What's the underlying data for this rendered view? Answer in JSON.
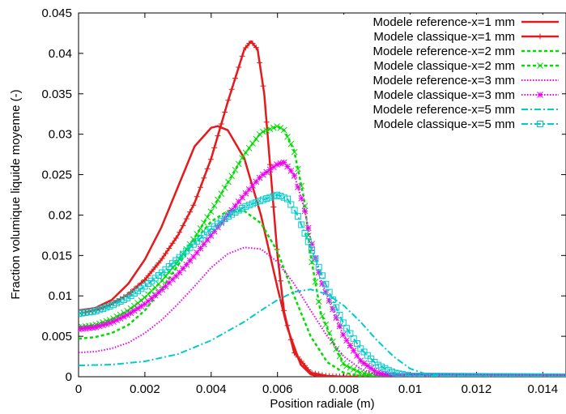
{
  "chart_data": {
    "type": "line",
    "title": "",
    "xlabel": "Position radiale (m)",
    "ylabel": "Fraction volumique liquide moyenne (-)",
    "xlim": [
      0,
      0.0147
    ],
    "ylim": [
      0,
      0.045
    ],
    "xticks": [
      0,
      0.002,
      0.004,
      0.006,
      0.008,
      0.01,
      0.012,
      0.014
    ],
    "xtick_labels": [
      "0",
      "0.002",
      "0.004",
      "0.006",
      "0.008",
      "0.01",
      "0.012",
      "0.014"
    ],
    "yticks": [
      0,
      0.005,
      0.01,
      0.015,
      0.02,
      0.025,
      0.03,
      0.035,
      0.04,
      0.045
    ],
    "ytick_labels": [
      "0",
      "0.005",
      "0.01",
      "0.015",
      "0.02",
      "0.025",
      "0.03",
      "0.035",
      "0.04",
      "0.045"
    ],
    "grid": false,
    "legend_position": "top-right",
    "series": [
      {
        "name": "Modele reference-x=1 mm",
        "color": "#e41a1c",
        "style": "solid",
        "marker": "none",
        "x": [
          0,
          0.0005,
          0.001,
          0.0015,
          0.002,
          0.0025,
          0.003,
          0.0035,
          0.004,
          0.0042,
          0.0045,
          0.005,
          0.0055,
          0.006,
          0.0063,
          0.0067,
          0.007,
          0.0072,
          0.008,
          0.0147
        ],
        "y": [
          0.0082,
          0.0085,
          0.0095,
          0.0115,
          0.0145,
          0.0185,
          0.0235,
          0.0285,
          0.0308,
          0.031,
          0.0305,
          0.027,
          0.02,
          0.011,
          0.006,
          0.0015,
          0.0003,
          0.0001,
          0,
          0
        ]
      },
      {
        "name": "Modele classique-x=1 mm",
        "color": "#e41a1c",
        "style": "solid",
        "marker": "plus",
        "x": [
          0,
          0.0005,
          0.001,
          0.0015,
          0.002,
          0.0025,
          0.003,
          0.0035,
          0.004,
          0.0045,
          0.005,
          0.0052,
          0.0054,
          0.0056,
          0.0058,
          0.006,
          0.0062,
          0.0065,
          0.007,
          0.0075,
          0.008,
          0.0147
        ],
        "y": [
          0.0078,
          0.0082,
          0.009,
          0.0102,
          0.012,
          0.0145,
          0.0175,
          0.0215,
          0.027,
          0.034,
          0.0405,
          0.0415,
          0.0405,
          0.035,
          0.025,
          0.015,
          0.008,
          0.003,
          0.0005,
          0.0001,
          0,
          0
        ]
      },
      {
        "name": "Modele reference-x=2 mm",
        "color": "#00dd00",
        "style": "dashed",
        "marker": "none",
        "x": [
          0,
          0.0005,
          0.001,
          0.0015,
          0.002,
          0.0025,
          0.003,
          0.0035,
          0.004,
          0.0045,
          0.005,
          0.0055,
          0.006,
          0.0065,
          0.007,
          0.0075,
          0.008,
          0.0085,
          0.0147
        ],
        "y": [
          0.0047,
          0.0049,
          0.0054,
          0.0064,
          0.0082,
          0.0108,
          0.0138,
          0.0168,
          0.0192,
          0.0205,
          0.0205,
          0.019,
          0.0155,
          0.01,
          0.005,
          0.0018,
          0.0005,
          0.0001,
          0
        ]
      },
      {
        "name": "Modele classique-x=2 mm",
        "color": "#00dd00",
        "style": "dashed",
        "marker": "x",
        "x": [
          0,
          0.0005,
          0.001,
          0.0015,
          0.002,
          0.0025,
          0.003,
          0.0035,
          0.004,
          0.0045,
          0.005,
          0.0055,
          0.006,
          0.0062,
          0.0065,
          0.0068,
          0.007,
          0.0073,
          0.0077,
          0.008,
          0.0085,
          0.009,
          0.0147
        ],
        "y": [
          0.0061,
          0.0064,
          0.0071,
          0.0082,
          0.0098,
          0.0118,
          0.0143,
          0.0172,
          0.0205,
          0.024,
          0.0275,
          0.0302,
          0.031,
          0.0305,
          0.028,
          0.022,
          0.015,
          0.008,
          0.004,
          0.0015,
          0.0005,
          0.0001,
          0
        ]
      },
      {
        "name": "Modele reference-x=3 mm",
        "color": "#ee00ee",
        "style": "dotted",
        "marker": "none",
        "x": [
          0,
          0.0005,
          0.001,
          0.0015,
          0.002,
          0.0025,
          0.003,
          0.0035,
          0.004,
          0.0045,
          0.005,
          0.0055,
          0.006,
          0.0065,
          0.007,
          0.0075,
          0.008,
          0.0085,
          0.009,
          0.0147
        ],
        "y": [
          0.003,
          0.0031,
          0.0035,
          0.0042,
          0.0054,
          0.007,
          0.009,
          0.0112,
          0.0135,
          0.0152,
          0.016,
          0.0158,
          0.0142,
          0.0115,
          0.0082,
          0.005,
          0.0025,
          0.001,
          0.0002,
          0
        ]
      },
      {
        "name": "Modele classique-x=3 mm",
        "color": "#ee00ee",
        "style": "dotted",
        "marker": "star",
        "x": [
          0,
          0.0005,
          0.001,
          0.0015,
          0.002,
          0.0025,
          0.003,
          0.0035,
          0.004,
          0.0045,
          0.005,
          0.0055,
          0.006,
          0.0062,
          0.0065,
          0.0068,
          0.007,
          0.0073,
          0.0077,
          0.008,
          0.0085,
          0.009,
          0.0095,
          0.0147
        ],
        "y": [
          0.0059,
          0.0061,
          0.0067,
          0.0077,
          0.009,
          0.0107,
          0.0127,
          0.015,
          0.0175,
          0.02,
          0.0225,
          0.0248,
          0.0263,
          0.0265,
          0.025,
          0.021,
          0.017,
          0.012,
          0.008,
          0.005,
          0.002,
          0.0005,
          0.0001,
          0
        ]
      },
      {
        "name": "Modele reference-x=5 mm",
        "color": "#00cccc",
        "style": "dashdot",
        "marker": "none",
        "x": [
          0,
          0.001,
          0.002,
          0.003,
          0.004,
          0.005,
          0.0055,
          0.006,
          0.0065,
          0.007,
          0.0075,
          0.008,
          0.0085,
          0.009,
          0.0095,
          0.01,
          0.0105,
          0.011,
          0.0147
        ],
        "y": [
          0.0014,
          0.0015,
          0.0019,
          0.0028,
          0.0045,
          0.0068,
          0.0082,
          0.0095,
          0.0105,
          0.0108,
          0.0102,
          0.0088,
          0.0068,
          0.0045,
          0.0025,
          0.001,
          0.0003,
          0.0001,
          0
        ]
      },
      {
        "name": "Modele classique-x=5 mm",
        "color": "#00cccc",
        "style": "dashdot",
        "marker": "square",
        "x": [
          0,
          0.0005,
          0.001,
          0.0015,
          0.002,
          0.0025,
          0.003,
          0.0035,
          0.004,
          0.0045,
          0.005,
          0.0055,
          0.006,
          0.0063,
          0.0066,
          0.007,
          0.0075,
          0.008,
          0.0085,
          0.009,
          0.0095,
          0.01,
          0.0147
        ],
        "y": [
          0.0078,
          0.0081,
          0.0088,
          0.0098,
          0.0112,
          0.0128,
          0.0146,
          0.0165,
          0.0183,
          0.0198,
          0.021,
          0.0218,
          0.0225,
          0.022,
          0.02,
          0.016,
          0.011,
          0.0065,
          0.0035,
          0.0015,
          0.0005,
          0.0001,
          0
        ]
      }
    ]
  }
}
